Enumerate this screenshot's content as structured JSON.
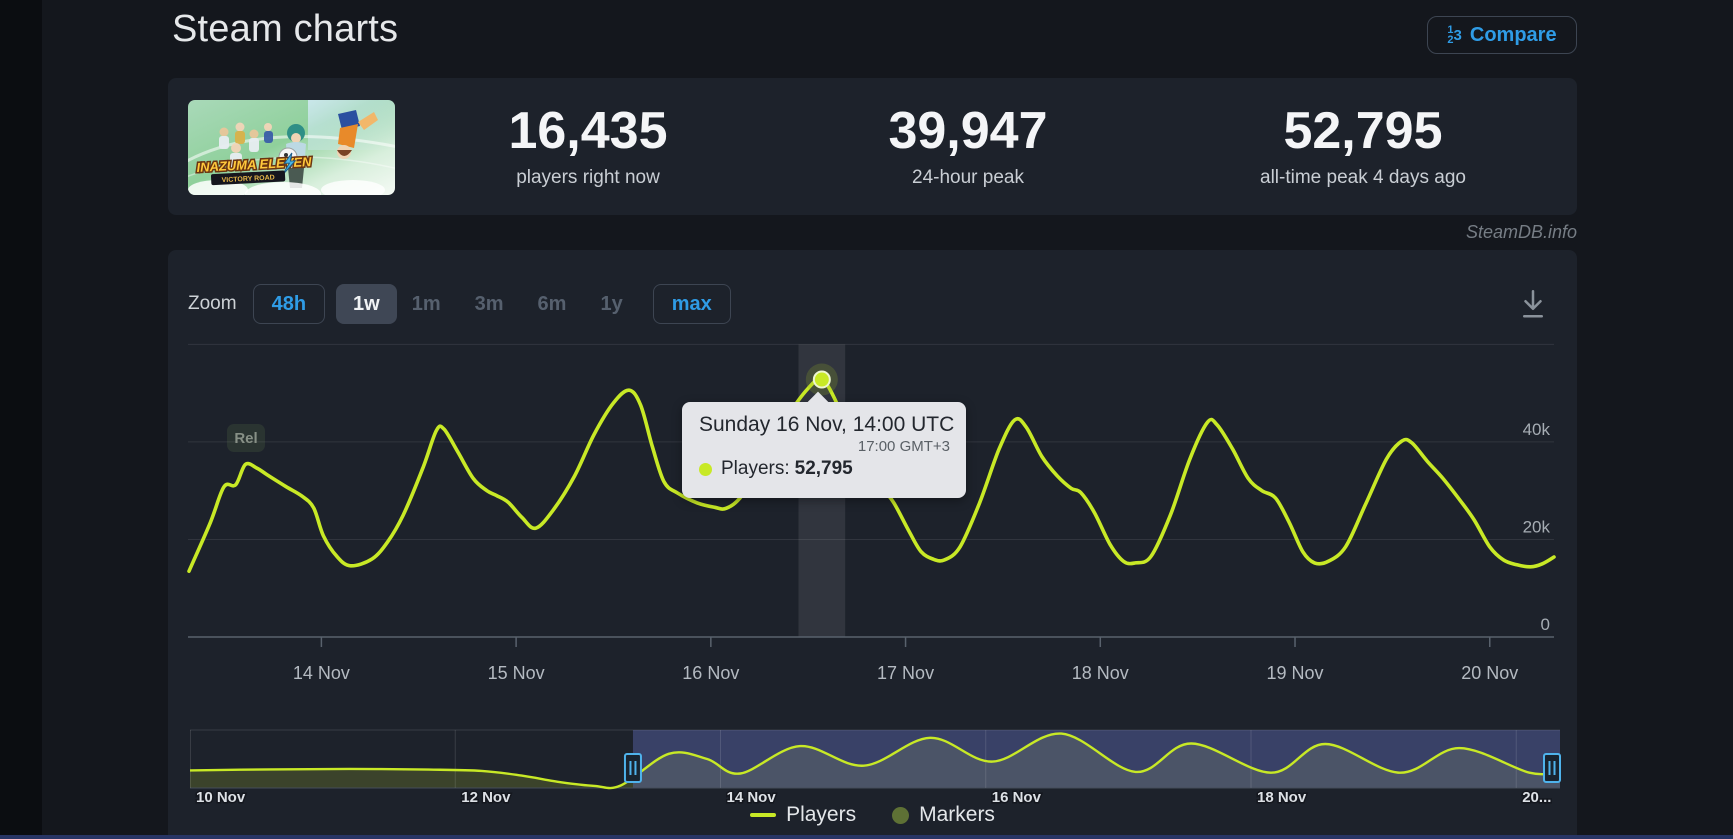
{
  "page": {
    "title": "Steam charts",
    "watermark": "SteamDB.info"
  },
  "header": {
    "compare_label": "Compare",
    "compare_icon_digits": [
      "1",
      "2",
      "3"
    ]
  },
  "stats": {
    "game_logo": {
      "line1": "INAZUMA ELEVEN",
      "line2": "VICTORY ROAD"
    },
    "items": [
      {
        "value": "16,435",
        "label": "players right now"
      },
      {
        "value": "39,947",
        "label": "24-hour peak"
      },
      {
        "value": "52,795",
        "label": "all-time peak 4 days ago"
      }
    ]
  },
  "toolbar": {
    "zoom_label": "Zoom",
    "buttons": [
      {
        "label": "48h",
        "state": "outlined"
      },
      {
        "label": "1w",
        "state": "selected"
      },
      {
        "label": "1m",
        "state": "muted"
      },
      {
        "label": "3m",
        "state": "muted"
      },
      {
        "label": "6m",
        "state": "muted"
      },
      {
        "label": "1y",
        "state": "muted"
      },
      {
        "label": "max",
        "state": "outlined"
      }
    ],
    "download_icon": "download-arrow"
  },
  "tooltip": {
    "date": "Sunday 16 Nov, 14:00 UTC",
    "local_time": "17:00 GMT+3",
    "series_label": "Players:",
    "value": "52,795"
  },
  "rel_flag_label": "Rel",
  "legend": [
    {
      "label": "Players",
      "type": "line",
      "color": "#c8e926"
    },
    {
      "label": "Markers",
      "type": "dot",
      "color": "#5e7135"
    }
  ],
  "chart_data": {
    "type": "line",
    "title": "Steam charts concurrent players",
    "series": [
      {
        "name": "Players",
        "color": "#c8e926",
        "points": [
          [
            13.32,
            13500
          ],
          [
            13.43,
            23500
          ],
          [
            13.5,
            30800
          ],
          [
            13.56,
            31200
          ],
          [
            13.61,
            35400
          ],
          [
            13.67,
            34600
          ],
          [
            13.72,
            33300
          ],
          [
            13.82,
            30800
          ],
          [
            13.9,
            28900
          ],
          [
            13.96,
            26500
          ],
          [
            14.01,
            20800
          ],
          [
            14.08,
            16500
          ],
          [
            14.15,
            14600
          ],
          [
            14.26,
            16000
          ],
          [
            14.34,
            19500
          ],
          [
            14.42,
            25000
          ],
          [
            14.52,
            34500
          ],
          [
            14.59,
            42300
          ],
          [
            14.63,
            42600
          ],
          [
            14.7,
            38000
          ],
          [
            14.78,
            32500
          ],
          [
            14.85,
            30000
          ],
          [
            14.9,
            29000
          ],
          [
            14.96,
            27600
          ],
          [
            15.03,
            24500
          ],
          [
            15.1,
            22300
          ],
          [
            15.19,
            26000
          ],
          [
            15.3,
            33000
          ],
          [
            15.4,
            41500
          ],
          [
            15.5,
            48000
          ],
          [
            15.58,
            50600
          ],
          [
            15.64,
            47500
          ],
          [
            15.7,
            39000
          ],
          [
            15.76,
            31800
          ],
          [
            15.83,
            29500
          ],
          [
            15.93,
            27500
          ],
          [
            16.02,
            26600
          ],
          [
            16.08,
            26400
          ],
          [
            16.16,
            29000
          ],
          [
            16.28,
            36500
          ],
          [
            16.4,
            45500
          ],
          [
            16.5,
            51000
          ],
          [
            16.57,
            52795
          ],
          [
            16.64,
            48500
          ],
          [
            16.72,
            40000
          ],
          [
            16.8,
            33500
          ],
          [
            16.88,
            30500
          ],
          [
            16.94,
            27500
          ],
          [
            17.02,
            21500
          ],
          [
            17.08,
            17500
          ],
          [
            17.14,
            16000
          ],
          [
            17.2,
            15800
          ],
          [
            17.28,
            18500
          ],
          [
            17.38,
            27500
          ],
          [
            17.48,
            38500
          ],
          [
            17.56,
            44500
          ],
          [
            17.62,
            43000
          ],
          [
            17.7,
            37000
          ],
          [
            17.78,
            33000
          ],
          [
            17.85,
            30500
          ],
          [
            17.9,
            29600
          ],
          [
            17.97,
            25500
          ],
          [
            18.05,
            19000
          ],
          [
            18.12,
            15500
          ],
          [
            18.18,
            15200
          ],
          [
            18.26,
            16500
          ],
          [
            18.36,
            25000
          ],
          [
            18.46,
            36500
          ],
          [
            18.55,
            44000
          ],
          [
            18.6,
            43500
          ],
          [
            18.68,
            38500
          ],
          [
            18.76,
            32500
          ],
          [
            18.83,
            30000
          ],
          [
            18.9,
            28500
          ],
          [
            18.97,
            23500
          ],
          [
            19.04,
            17500
          ],
          [
            19.1,
            15200
          ],
          [
            19.17,
            15500
          ],
          [
            19.26,
            18500
          ],
          [
            19.36,
            27000
          ],
          [
            19.47,
            36500
          ],
          [
            19.55,
            40200
          ],
          [
            19.6,
            39800
          ],
          [
            19.68,
            36000
          ],
          [
            19.76,
            32500
          ],
          [
            19.85,
            27900
          ],
          [
            19.92,
            24000
          ],
          [
            20.0,
            18500
          ],
          [
            20.07,
            15800
          ],
          [
            20.14,
            14800
          ],
          [
            20.21,
            14400
          ],
          [
            20.27,
            15000
          ],
          [
            20.33,
            16400
          ]
        ]
      }
    ],
    "xlim": [
      13.315,
      20.33
    ],
    "ylim": [
      0,
      65000
    ],
    "x_ticks": [
      {
        "label": "14 Nov",
        "day": 14
      },
      {
        "label": "15 Nov",
        "day": 15
      },
      {
        "label": "16 Nov",
        "day": 16
      },
      {
        "label": "17 Nov",
        "day": 17
      },
      {
        "label": "18 Nov",
        "day": 18
      },
      {
        "label": "19 Nov",
        "day": 19
      },
      {
        "label": "20 Nov",
        "day": 20
      }
    ],
    "y_ticks": [
      {
        "label": "0",
        "value": 0
      },
      {
        "label": "20k",
        "value": 20000
      },
      {
        "label": "40k",
        "value": 40000
      },
      {
        "label": "",
        "value": 60000
      }
    ],
    "grid": true,
    "legend_position": "bottom",
    "hover_band": {
      "day_start": 16.45,
      "day_end": 16.69
    },
    "marker_point": {
      "day": 16.57,
      "players": 52795
    },
    "colors": {
      "line": "#c8e926",
      "grid": "rgba(255,255,255,0.09)",
      "axis": "#59626d",
      "band": "rgba(255,255,255,0.09)",
      "marker_halo": "rgba(150,175,40,0.45)",
      "y_label": "#a6adb4",
      "nav_fill": "rgba(167,186,44,0.22)",
      "nav_selection": "rgba(97,110,187,0.42)",
      "nav_grid": "rgba(255,255,255,0.12)",
      "handle": "#4fb3ec",
      "nav_label": "#dde1e6"
    },
    "navigator": {
      "range_days": [
        10,
        20.33
      ],
      "selected_range": [
        13.34,
        20.33
      ],
      "points": [
        [
          10.0,
          17000
        ],
        [
          10.6,
          18000
        ],
        [
          11.2,
          18400
        ],
        [
          11.8,
          17800
        ],
        [
          12.2,
          16500
        ],
        [
          12.5,
          12000
        ],
        [
          12.8,
          5500
        ],
        [
          13.05,
          2000
        ],
        [
          13.25,
          2500
        ],
        [
          13.61,
          33000
        ],
        [
          13.9,
          28000
        ],
        [
          14.15,
          14000
        ],
        [
          14.6,
          40500
        ],
        [
          15.08,
          21500
        ],
        [
          15.58,
          48500
        ],
        [
          16.05,
          25500
        ],
        [
          16.57,
          52500
        ],
        [
          17.13,
          15500
        ],
        [
          17.55,
          43000
        ],
        [
          18.15,
          14800
        ],
        [
          18.56,
          42500
        ],
        [
          19.12,
          14800
        ],
        [
          19.57,
          38500
        ],
        [
          20.1,
          14800
        ],
        [
          20.33,
          16000
        ]
      ],
      "labels": [
        {
          "label": "10 Nov",
          "day": 10
        },
        {
          "label": "12 Nov",
          "day": 12
        },
        {
          "label": "14 Nov",
          "day": 14
        },
        {
          "label": "16 Nov",
          "day": 16
        },
        {
          "label": "18 Nov",
          "day": 18
        },
        {
          "label": "20...",
          "day": 20
        }
      ],
      "gridline_days": [
        12,
        14,
        16,
        18,
        20
      ]
    }
  }
}
